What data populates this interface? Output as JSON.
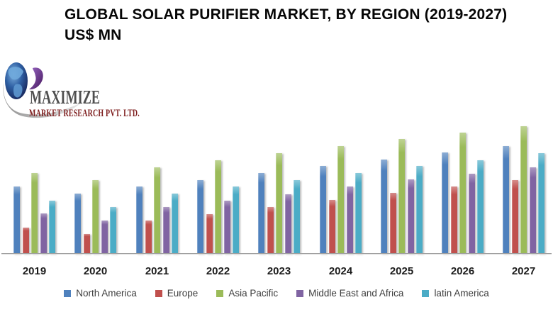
{
  "title": {
    "line1": "GLOBAL SOLAR PURIFIER MARKET, BY REGION (2019-2027)",
    "line2": "US$ MN"
  },
  "logo": {
    "brand": "MAXIMIZE",
    "subtext": "MARKET RESEARCH PVT. LTD.",
    "colors": {
      "brand_text": "#4f4f4f",
      "subtext": "#7e1e1e",
      "globe_dark_blue": "#16255c",
      "globe_light_blue": "#6fa8dc",
      "swoosh_gray": "#a0a0a0",
      "comma_purple": "#5c2d82"
    }
  },
  "chart_data": {
    "type": "bar",
    "title": "GLOBAL SOLAR PURIFIER MARKET, BY REGION (2019-2027)",
    "subtitle": "US$ MN",
    "categories": [
      "2019",
      "2020",
      "2021",
      "2022",
      "2023",
      "2024",
      "2025",
      "2026",
      "2027"
    ],
    "series": [
      {
        "name": "North America",
        "color": "#4F81BD",
        "values": [
          95,
          85,
          95,
          104,
          114,
          124,
          133,
          143,
          152
        ]
      },
      {
        "name": "Europe",
        "color": "#C0504D",
        "values": [
          37,
          28,
          47,
          56,
          66,
          76,
          86,
          95,
          104
        ]
      },
      {
        "name": "Asia Pacific",
        "color": "#9BBB59",
        "values": [
          114,
          104,
          122,
          132,
          142,
          152,
          162,
          171,
          180
        ]
      },
      {
        "name": "Middle East and Africa",
        "color": "#8064A2",
        "values": [
          57,
          47,
          66,
          75,
          84,
          95,
          105,
          113,
          122
        ]
      },
      {
        "name": "latin America",
        "color": "#4BACC6",
        "values": [
          75,
          66,
          85,
          95,
          104,
          114,
          124,
          132,
          142
        ]
      }
    ],
    "xlabel": "",
    "ylabel": "US$ MN",
    "ylim": [
      0,
      200
    ],
    "y_axis_labels_visible": false,
    "gridlines": false,
    "legend_position": "bottom",
    "axis_line_color": "#a1a1a1",
    "value_scale_note": "no y-axis scale shown in source; values estimated from bar heights"
  }
}
